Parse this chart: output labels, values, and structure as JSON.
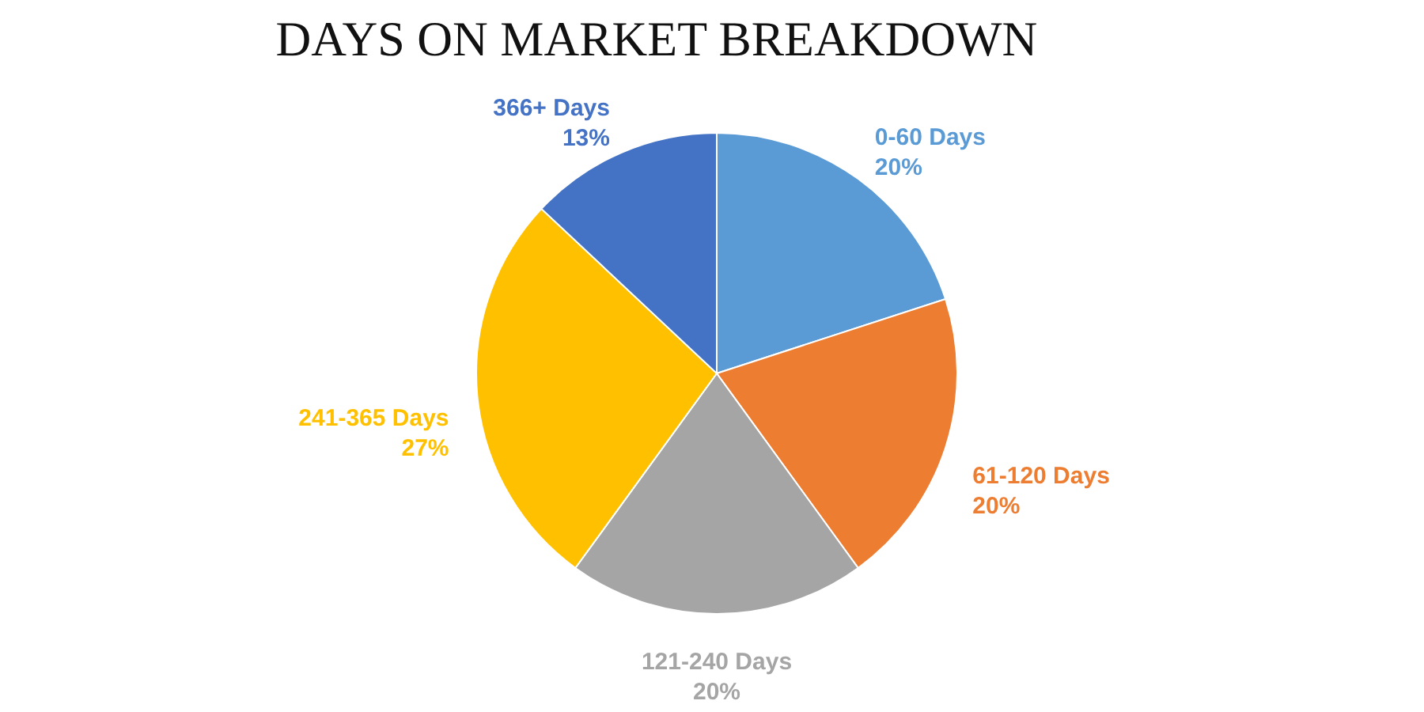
{
  "chart_data": {
    "type": "pie",
    "title": "DAYS ON MARKET BREAKDOWN",
    "categories": [
      "0-60 Days",
      "61-120 Days",
      "121-240 Days",
      "241-365 Days",
      "366+ Days"
    ],
    "values": [
      20,
      20,
      20,
      27,
      13
    ],
    "value_labels": [
      "20%",
      "20%",
      "20%",
      "27%",
      "13%"
    ],
    "colors": [
      "#5b9bd5",
      "#ed7d31",
      "#a5a5a5",
      "#ffc000",
      "#4472c4"
    ]
  }
}
